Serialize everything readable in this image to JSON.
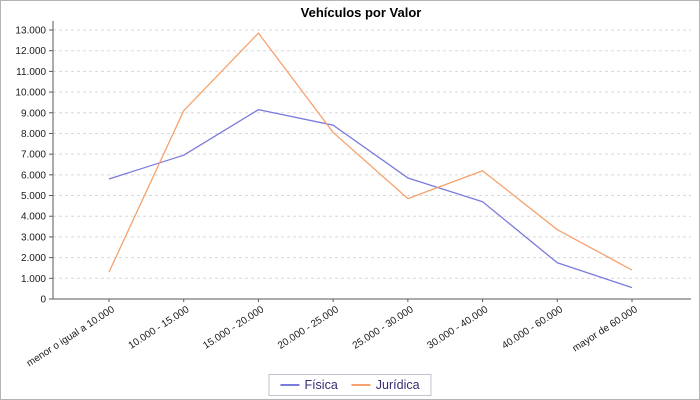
{
  "chart_data": {
    "type": "line",
    "title": "Vehículos por Valor",
    "categories": [
      "menor o igual a 10.000",
      "10.000 - 15.000",
      "15.000 - 20.000",
      "20.000 - 25.000",
      "25.000 - 30.000",
      "30.000 - 40.000",
      "40.000 - 60.000",
      "mayor de 60.000"
    ],
    "series": [
      {
        "name": "Física",
        "color": "#7b7bdc",
        "values": [
          5800,
          6950,
          9150,
          8400,
          5850,
          4700,
          1750,
          550
        ]
      },
      {
        "name": "Jurídica",
        "color": "#f5a26e",
        "values": [
          1300,
          9100,
          12850,
          8050,
          4850,
          6200,
          3350,
          1400
        ]
      }
    ],
    "y_axis": {
      "min": 0,
      "max": 13000,
      "step": 1000,
      "tick_labels": [
        "0",
        "1.000",
        "2.000",
        "3.000",
        "4.000",
        "5.000",
        "6.000",
        "7.000",
        "8.000",
        "9.000",
        "10.000",
        "11.000",
        "12.000",
        "13.000"
      ]
    },
    "xlabel": "",
    "ylabel": "",
    "grid": "horizontal-dashed",
    "legend_position": "bottom",
    "colors": {
      "axis": "#5a5a5a",
      "gridline": "#d9d9d9",
      "tick_text": "#1a1a1a",
      "legend_text": "#3a2a72",
      "legend_border": "#c3c3cd"
    }
  }
}
